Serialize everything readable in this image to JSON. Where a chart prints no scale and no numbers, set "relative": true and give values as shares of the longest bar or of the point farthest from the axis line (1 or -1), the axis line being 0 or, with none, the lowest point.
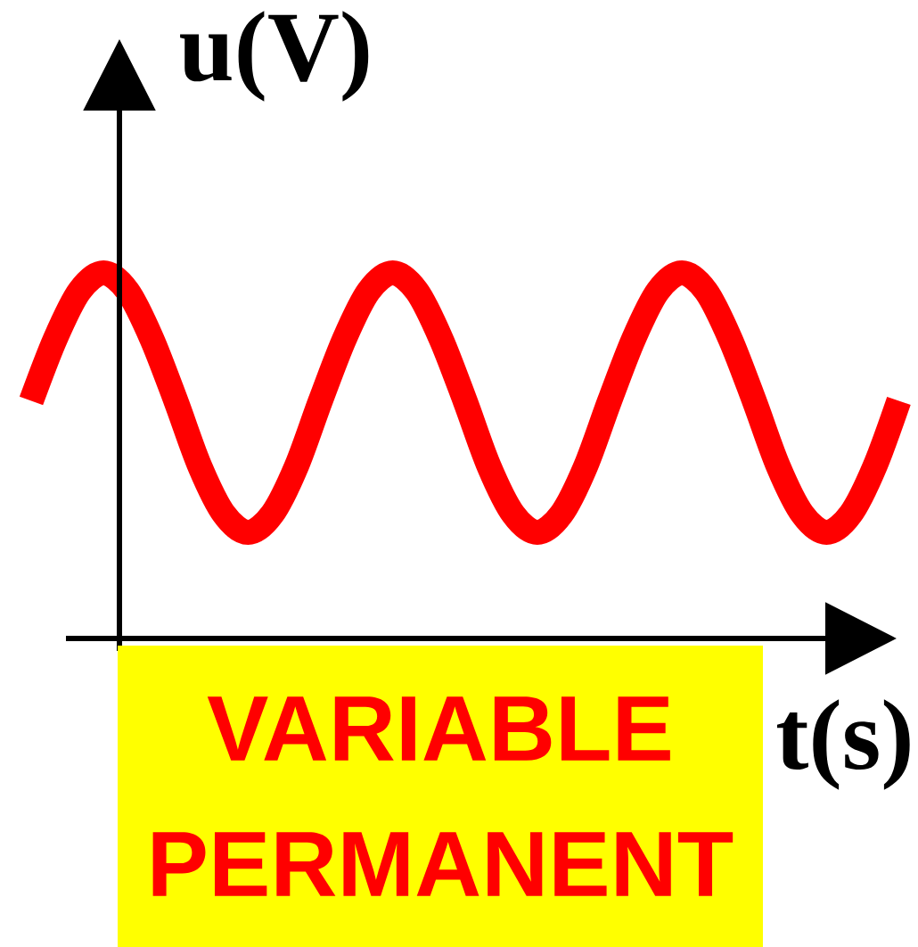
{
  "chart_data": {
    "type": "line",
    "relative": true,
    "tick_labels": false,
    "color": "#ff0000",
    "xlabel": "t(s)",
    "ylabel": "u(V)",
    "annotations": [
      "VARIABLE PERMANENT"
    ],
    "categories": [
      null,
      null,
      null,
      null,
      null,
      null,
      null,
      null,
      null,
      null,
      null,
      null,
      null,
      null,
      null,
      null,
      null,
      null,
      null,
      null,
      null,
      null,
      null,
      null,
      null,
      null,
      null,
      null,
      null,
      null,
      null,
      null,
      null,
      null,
      null,
      null,
      null
    ],
    "values": [
      0.65,
      0.82,
      0.95,
      1.0,
      0.95,
      0.82,
      0.65,
      0.47,
      0.34,
      0.29,
      0.34,
      0.47,
      0.65,
      0.82,
      0.95,
      1.0,
      0.95,
      0.82,
      0.65,
      0.47,
      0.34,
      0.29,
      0.34,
      0.47,
      0.65,
      0.82,
      0.95,
      1.0,
      0.95,
      0.82,
      0.65,
      0.47,
      0.34,
      0.29,
      0.34,
      0.47,
      0.65
    ]
  }
}
